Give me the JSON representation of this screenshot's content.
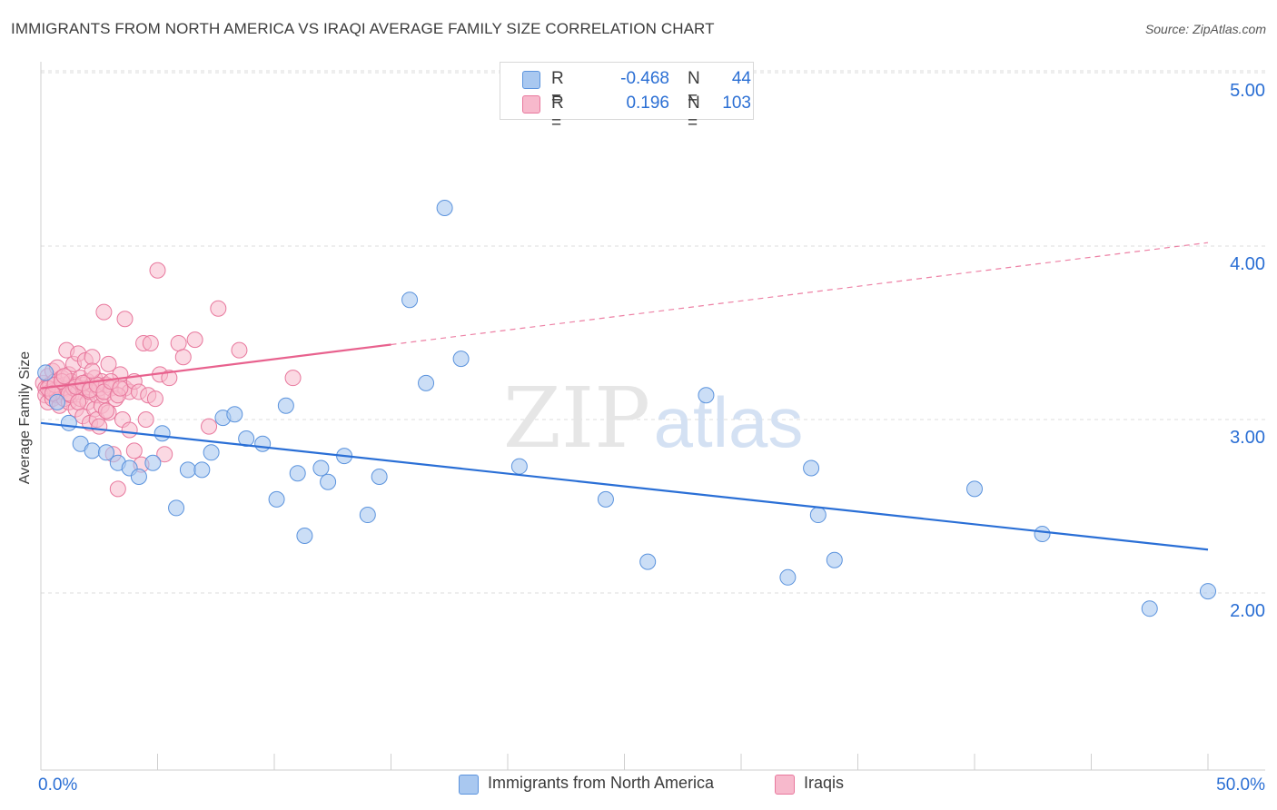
{
  "header": {
    "title": "IMMIGRANTS FROM NORTH AMERICA VS IRAQI AVERAGE FAMILY SIZE CORRELATION CHART",
    "source": "Source: ZipAtlas.com"
  },
  "watermark": {
    "zip": "ZIP",
    "atlas": "atlas"
  },
  "legend": {
    "rows": [
      {
        "r_label": "R =",
        "r_value": "-0.468",
        "n_label": "N =",
        "n_value": "44"
      },
      {
        "r_label": "R =",
        "r_value": "0.196",
        "n_label": "N =",
        "n_value": "103"
      }
    ]
  },
  "bottom_legend": {
    "items": [
      "Immigrants from North America",
      "Iraqis"
    ]
  },
  "colors": {
    "blue_fill": "#a9c8f0",
    "blue_stroke": "#5b93dd",
    "blue_line": "#2a6fd6",
    "pink_fill": "#f7b9cc",
    "pink_stroke": "#e8789d",
    "pink_line": "#e8628e",
    "axis_label": "#2b6fd4",
    "grid": "#dcdcdc"
  },
  "chart_data": {
    "type": "scatter",
    "title": "IMMIGRANTS FROM NORTH AMERICA VS IRAQI AVERAGE FAMILY SIZE CORRELATION CHART",
    "xlabel": "",
    "ylabel": "Average Family Size",
    "xlim": [
      0,
      50
    ],
    "ylim": [
      1.0,
      5.15
    ],
    "x_tick_labels": [
      "0.0%",
      "50.0%"
    ],
    "y_ticks": [
      2.0,
      3.0,
      4.0,
      5.0
    ],
    "y_tick_labels": [
      "2.00",
      "3.00",
      "4.00",
      "5.00"
    ],
    "series": [
      {
        "name": "Immigrants from North America",
        "R": -0.468,
        "N": 44,
        "trend": {
          "x0": 0,
          "y0": 2.98,
          "x1": 50,
          "y1": 2.25,
          "solid_until": 50
        },
        "points": [
          [
            0.2,
            3.27
          ],
          [
            0.7,
            3.1
          ],
          [
            1.2,
            2.98
          ],
          [
            1.7,
            2.86
          ],
          [
            2.2,
            2.82
          ],
          [
            2.8,
            2.81
          ],
          [
            3.3,
            2.75
          ],
          [
            3.8,
            2.72
          ],
          [
            4.2,
            2.67
          ],
          [
            4.8,
            2.75
          ],
          [
            5.2,
            2.92
          ],
          [
            5.8,
            2.49
          ],
          [
            6.3,
            2.71
          ],
          [
            6.9,
            2.71
          ],
          [
            7.3,
            2.81
          ],
          [
            7.8,
            3.01
          ],
          [
            8.3,
            3.03
          ],
          [
            8.8,
            2.89
          ],
          [
            9.5,
            2.86
          ],
          [
            10.1,
            2.54
          ],
          [
            10.5,
            3.08
          ],
          [
            11.0,
            2.69
          ],
          [
            11.3,
            2.33
          ],
          [
            12.0,
            2.72
          ],
          [
            12.3,
            2.64
          ],
          [
            13.0,
            2.79
          ],
          [
            14.0,
            2.45
          ],
          [
            14.5,
            2.67
          ],
          [
            15.8,
            3.69
          ],
          [
            16.5,
            3.21
          ],
          [
            17.3,
            4.22
          ],
          [
            18.0,
            3.35
          ],
          [
            20.5,
            2.73
          ],
          [
            24.2,
            2.54
          ],
          [
            26.0,
            2.18
          ],
          [
            28.5,
            3.14
          ],
          [
            32.0,
            2.09
          ],
          [
            33.0,
            2.72
          ],
          [
            33.3,
            2.45
          ],
          [
            34.0,
            2.19
          ],
          [
            40.0,
            2.6
          ],
          [
            42.9,
            2.34
          ],
          [
            47.5,
            1.91
          ],
          [
            50.0,
            2.01
          ]
        ]
      },
      {
        "name": "Iraqis",
        "R": 0.196,
        "N": 103,
        "trend": {
          "x0": 0,
          "y0": 3.18,
          "x1": 50,
          "y1": 4.02,
          "solid_until": 15
        },
        "points": [
          [
            0.1,
            3.21
          ],
          [
            0.2,
            3.18
          ],
          [
            0.2,
            3.14
          ],
          [
            0.3,
            3.25
          ],
          [
            0.3,
            3.1
          ],
          [
            0.4,
            3.2
          ],
          [
            0.4,
            3.16
          ],
          [
            0.5,
            3.28
          ],
          [
            0.5,
            3.12
          ],
          [
            0.6,
            3.22
          ],
          [
            0.6,
            3.17
          ],
          [
            0.7,
            3.3
          ],
          [
            0.7,
            3.14
          ],
          [
            0.8,
            3.19
          ],
          [
            0.8,
            3.08
          ],
          [
            0.9,
            3.24
          ],
          [
            0.9,
            3.16
          ],
          [
            1.0,
            3.2
          ],
          [
            1.0,
            3.12
          ],
          [
            1.1,
            3.4
          ],
          [
            1.1,
            3.18
          ],
          [
            1.2,
            3.26
          ],
          [
            1.2,
            3.1
          ],
          [
            1.3,
            3.22
          ],
          [
            1.3,
            3.14
          ],
          [
            1.4,
            3.32
          ],
          [
            1.4,
            3.18
          ],
          [
            1.5,
            3.2
          ],
          [
            1.5,
            3.06
          ],
          [
            1.6,
            3.38
          ],
          [
            1.6,
            3.16
          ],
          [
            1.7,
            3.24
          ],
          [
            1.7,
            3.12
          ],
          [
            1.8,
            3.2
          ],
          [
            1.8,
            3.02
          ],
          [
            1.9,
            3.34
          ],
          [
            1.9,
            3.18
          ],
          [
            2.0,
            3.22
          ],
          [
            2.0,
            3.1
          ],
          [
            2.1,
            3.16
          ],
          [
            2.1,
            2.98
          ],
          [
            2.2,
            3.36
          ],
          [
            2.2,
            3.2
          ],
          [
            2.3,
            3.24
          ],
          [
            2.3,
            3.06
          ],
          [
            2.4,
            3.14
          ],
          [
            2.4,
            3.0
          ],
          [
            2.5,
            3.18
          ],
          [
            2.5,
            2.96
          ],
          [
            2.6,
            3.22
          ],
          [
            2.6,
            3.08
          ],
          [
            2.7,
            3.62
          ],
          [
            2.7,
            3.14
          ],
          [
            2.8,
            3.2
          ],
          [
            2.9,
            3.32
          ],
          [
            2.9,
            3.04
          ],
          [
            3.0,
            3.18
          ],
          [
            3.1,
            2.8
          ],
          [
            3.2,
            3.12
          ],
          [
            3.3,
            2.6
          ],
          [
            3.4,
            3.26
          ],
          [
            3.5,
            3.0
          ],
          [
            3.6,
            3.58
          ],
          [
            3.6,
            3.18
          ],
          [
            3.8,
            3.16
          ],
          [
            3.8,
            2.94
          ],
          [
            4.0,
            3.22
          ],
          [
            4.0,
            2.82
          ],
          [
            4.2,
            3.16
          ],
          [
            4.3,
            2.74
          ],
          [
            4.4,
            3.44
          ],
          [
            4.5,
            3.0
          ],
          [
            4.6,
            3.14
          ],
          [
            4.7,
            3.44
          ],
          [
            4.9,
            3.12
          ],
          [
            5.0,
            3.86
          ],
          [
            5.1,
            3.26
          ],
          [
            5.3,
            2.8
          ],
          [
            5.5,
            3.24
          ],
          [
            5.9,
            3.44
          ],
          [
            6.1,
            3.36
          ],
          [
            6.6,
            3.46
          ],
          [
            7.2,
            2.96
          ],
          [
            7.6,
            3.64
          ],
          [
            8.5,
            3.4
          ],
          [
            10.8,
            3.24
          ],
          [
            0.3,
            3.18
          ],
          [
            0.6,
            3.2
          ],
          [
            0.9,
            3.22
          ],
          [
            1.2,
            3.15
          ],
          [
            1.5,
            3.19
          ],
          [
            1.8,
            3.21
          ],
          [
            2.1,
            3.17
          ],
          [
            2.4,
            3.2
          ],
          [
            2.7,
            3.16
          ],
          [
            3.0,
            3.22
          ],
          [
            3.3,
            3.14
          ],
          [
            0.5,
            3.15
          ],
          [
            1.0,
            3.25
          ],
          [
            1.6,
            3.1
          ],
          [
            2.2,
            3.28
          ],
          [
            2.8,
            3.05
          ],
          [
            3.4,
            3.18
          ]
        ]
      }
    ]
  }
}
